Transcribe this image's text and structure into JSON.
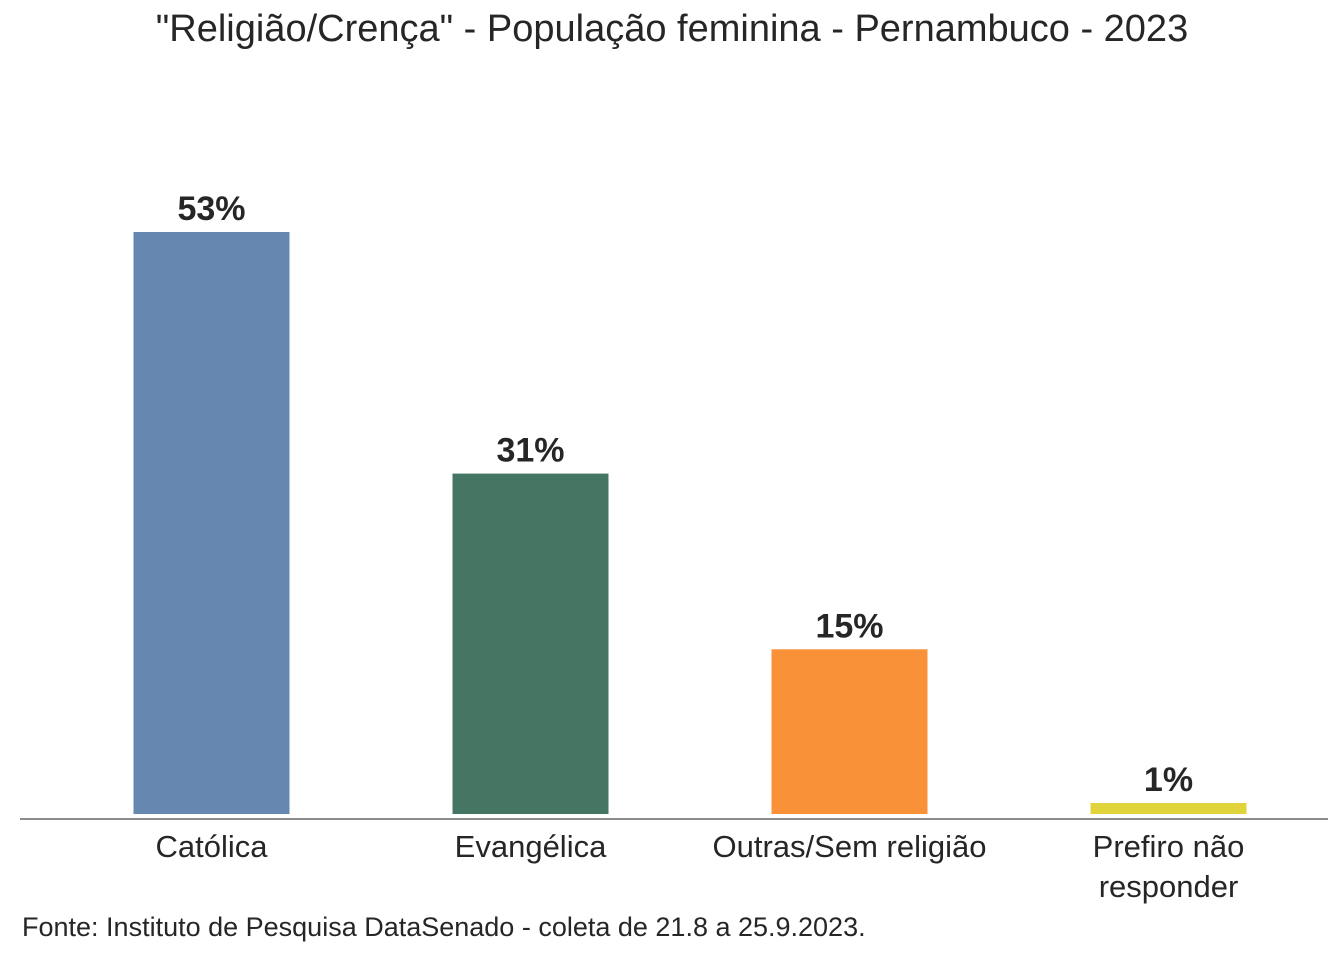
{
  "chart_data": {
    "type": "bar",
    "title": "\"Religião/Crença\" - População feminina - Pernambuco - 2023",
    "categories": [
      [
        "Católica"
      ],
      [
        "Evangélica"
      ],
      [
        "Outras/Sem religião"
      ],
      [
        "Prefiro não",
        "responder"
      ]
    ],
    "values": [
      53,
      31,
      15,
      1
    ],
    "value_labels": [
      "53%",
      "31%",
      "15%",
      "1%"
    ],
    "colors": [
      "#6688b0",
      "#457664",
      "#f99138",
      "#e0d43a"
    ],
    "ylim": [
      0,
      53
    ],
    "grid": false,
    "legend": "none"
  },
  "source": "Fonte: Instituto de Pesquisa DataSenado - coleta de 21.8 a 25.9.2023."
}
